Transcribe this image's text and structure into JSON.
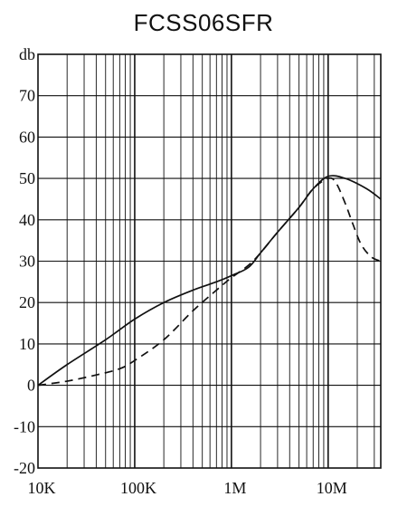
{
  "chart_data": {
    "type": "line",
    "title": "FCSS06SFR",
    "ylabel": "db",
    "xscale": "log",
    "grid": true,
    "xlim": [
      10000,
      35000000
    ],
    "ylim": [
      -20,
      80
    ],
    "x_tick_labels": [
      {
        "value": 10000,
        "label": "10K"
      },
      {
        "value": 100000,
        "label": "100K"
      },
      {
        "value": 1000000,
        "label": "1M"
      },
      {
        "value": 10000000,
        "label": "10M"
      }
    ],
    "y_tick_labels": [
      {
        "value": 70,
        "label": "70"
      },
      {
        "value": 60,
        "label": "60"
      },
      {
        "value": 50,
        "label": "50"
      },
      {
        "value": 40,
        "label": "40"
      },
      {
        "value": 30,
        "label": "30"
      },
      {
        "value": 20,
        "label": "20"
      },
      {
        "value": 10,
        "label": "10"
      },
      {
        "value": 0,
        "label": "0"
      },
      {
        "value": -10,
        "label": "-10"
      },
      {
        "value": -20,
        "label": "-20"
      }
    ],
    "series": [
      {
        "style": "solid",
        "color": "#111111",
        "points": [
          [
            10000,
            0
          ],
          [
            20000,
            5
          ],
          [
            50000,
            11
          ],
          [
            100000,
            16
          ],
          [
            200000,
            20
          ],
          [
            400000,
            23
          ],
          [
            700000,
            25
          ],
          [
            1000000,
            26.5
          ],
          [
            1500000,
            28.5
          ],
          [
            2000000,
            32
          ],
          [
            3000000,
            37
          ],
          [
            5000000,
            43
          ],
          [
            7000000,
            47.5
          ],
          [
            10000000,
            50.5
          ],
          [
            15000000,
            50
          ],
          [
            25000000,
            47.5
          ],
          [
            35000000,
            45
          ]
        ]
      },
      {
        "style": "dashed",
        "color": "#111111",
        "points": [
          [
            10000,
            0
          ],
          [
            20000,
            1
          ],
          [
            40000,
            2.5
          ],
          [
            70000,
            4
          ],
          [
            100000,
            6
          ],
          [
            200000,
            11
          ],
          [
            400000,
            18
          ],
          [
            700000,
            23
          ],
          [
            1000000,
            26
          ],
          [
            1500000,
            29
          ],
          [
            2000000,
            32
          ],
          [
            3000000,
            37
          ],
          [
            5000000,
            43
          ],
          [
            7000000,
            47.5
          ],
          [
            10000000,
            50
          ],
          [
            12000000,
            49
          ],
          [
            15000000,
            44
          ],
          [
            18000000,
            39
          ],
          [
            22000000,
            34
          ],
          [
            28000000,
            31
          ],
          [
            35000000,
            30
          ]
        ]
      }
    ]
  }
}
